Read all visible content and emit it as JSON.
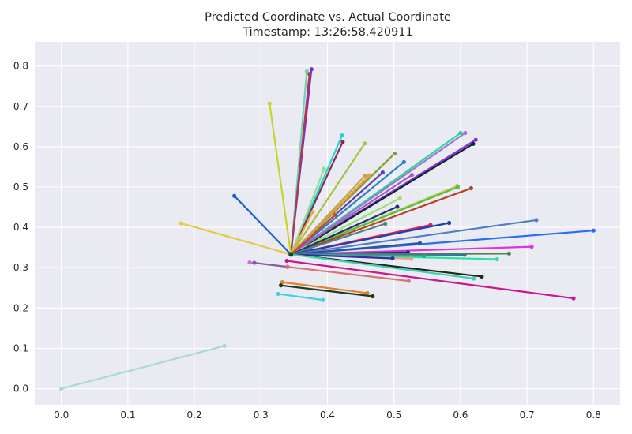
{
  "chart_data": {
    "type": "line",
    "title": "Predicted Coordinate vs. Actual Coordinate",
    "subtitle": "Timestamp: 13:26:58.420911",
    "xlabel": "",
    "ylabel": "",
    "xlim": [
      -0.04,
      0.84
    ],
    "ylim": [
      -0.04,
      0.86
    ],
    "xticks": [
      "0.0",
      "0.1",
      "0.2",
      "0.3",
      "0.4",
      "0.5",
      "0.6",
      "0.7",
      "0.8"
    ],
    "yticks": [
      "0.0",
      "0.1",
      "0.2",
      "0.3",
      "0.4",
      "0.5",
      "0.6",
      "0.7",
      "0.8"
    ],
    "grid": true,
    "background": "#eaeaf2",
    "hub": [
      0.345,
      0.333
    ],
    "segments": [
      {
        "from": [
          0.0,
          0.0
        ],
        "to": [
          0.245,
          0.106
        ],
        "color": "#a9d8d8"
      },
      {
        "from": [
          0.345,
          0.333
        ],
        "to": [
          0.369,
          0.787
        ],
        "color": "#6fd3b8"
      },
      {
        "from": [
          0.345,
          0.333
        ],
        "to": [
          0.376,
          0.792
        ],
        "color": "#7a2ad0"
      },
      {
        "from": [
          0.345,
          0.333
        ],
        "to": [
          0.373,
          0.78
        ],
        "color": "#b03a48"
      },
      {
        "from": [
          0.345,
          0.333
        ],
        "to": [
          0.313,
          0.707
        ],
        "color": "#c8d42a"
      },
      {
        "from": [
          0.345,
          0.333
        ],
        "to": [
          0.422,
          0.628
        ],
        "color": "#1fd6d6"
      },
      {
        "from": [
          0.345,
          0.333
        ],
        "to": [
          0.423,
          0.612
        ],
        "color": "#8a2a50"
      },
      {
        "from": [
          0.345,
          0.333
        ],
        "to": [
          0.456,
          0.608
        ],
        "color": "#a8c040"
      },
      {
        "from": [
          0.345,
          0.333
        ],
        "to": [
          0.6,
          0.634
        ],
        "color": "#2ad49a"
      },
      {
        "from": [
          0.345,
          0.333
        ],
        "to": [
          0.607,
          0.634
        ],
        "color": "#9a7ad0"
      },
      {
        "from": [
          0.345,
          0.333
        ],
        "to": [
          0.623,
          0.617
        ],
        "color": "#8a2ad8"
      },
      {
        "from": [
          0.345,
          0.333
        ],
        "to": [
          0.619,
          0.607
        ],
        "color": "#0a2a2a"
      },
      {
        "from": [
          0.345,
          0.333
        ],
        "to": [
          0.501,
          0.583
        ],
        "color": "#7aa030"
      },
      {
        "from": [
          0.345,
          0.333
        ],
        "to": [
          0.515,
          0.562
        ],
        "color": "#2a80d0"
      },
      {
        "from": [
          0.345,
          0.333
        ],
        "to": [
          0.395,
          0.545
        ],
        "color": "#90e090"
      },
      {
        "from": [
          0.345,
          0.333
        ],
        "to": [
          0.483,
          0.536
        ],
        "color": "#5a40b0"
      },
      {
        "from": [
          0.345,
          0.333
        ],
        "to": [
          0.463,
          0.529
        ],
        "color": "#e8a040"
      },
      {
        "from": [
          0.345,
          0.333
        ],
        "to": [
          0.456,
          0.527
        ],
        "color": "#c8a050"
      },
      {
        "from": [
          0.345,
          0.333
        ],
        "to": [
          0.527,
          0.53
        ],
        "color": "#a060c0"
      },
      {
        "from": [
          0.345,
          0.333
        ],
        "to": [
          0.595,
          0.503
        ],
        "color": "#c8d050"
      },
      {
        "from": [
          0.345,
          0.333
        ],
        "to": [
          0.596,
          0.5
        ],
        "color": "#50c040"
      },
      {
        "from": [
          0.345,
          0.333
        ],
        "to": [
          0.616,
          0.497
        ],
        "color": "#b84020"
      },
      {
        "from": [
          0.345,
          0.333
        ],
        "to": [
          0.509,
          0.472
        ],
        "color": "#98e070"
      },
      {
        "from": [
          0.345,
          0.333
        ],
        "to": [
          0.505,
          0.451
        ],
        "color": "#203080"
      },
      {
        "from": [
          0.345,
          0.333
        ],
        "to": [
          0.378,
          0.438
        ],
        "color": "#e0b050"
      },
      {
        "from": [
          0.345,
          0.333
        ],
        "to": [
          0.412,
          0.431
        ],
        "color": "#d04030"
      },
      {
        "from": [
          0.345,
          0.333
        ],
        "to": [
          0.487,
          0.409
        ],
        "color": "#508080"
      },
      {
        "from": [
          0.345,
          0.333
        ],
        "to": [
          0.555,
          0.406
        ],
        "color": "#e02050"
      },
      {
        "from": [
          0.345,
          0.333
        ],
        "to": [
          0.583,
          0.411
        ],
        "color": "#2040b0"
      },
      {
        "from": [
          0.345,
          0.333
        ],
        "to": [
          0.714,
          0.418
        ],
        "color": "#5080c0"
      },
      {
        "from": [
          0.345,
          0.333
        ],
        "to": [
          0.8,
          0.392
        ],
        "color": "#2a6ef0"
      },
      {
        "from": [
          0.345,
          0.333
        ],
        "to": [
          0.539,
          0.361
        ],
        "color": "#3050a0"
      },
      {
        "from": [
          0.345,
          0.333
        ],
        "to": [
          0.707,
          0.352
        ],
        "color": "#e030e0"
      },
      {
        "from": [
          0.345,
          0.333
        ],
        "to": [
          0.521,
          0.338
        ],
        "color": "#2020c0"
      },
      {
        "from": [
          0.345,
          0.333
        ],
        "to": [
          0.606,
          0.332
        ],
        "color": "#2070c0"
      },
      {
        "from": [
          0.345,
          0.333
        ],
        "to": [
          0.673,
          0.335
        ],
        "color": "#508050"
      },
      {
        "from": [
          0.345,
          0.333
        ],
        "to": [
          0.655,
          0.321
        ],
        "color": "#30e0a0"
      },
      {
        "from": [
          0.345,
          0.333
        ],
        "to": [
          0.545,
          0.329
        ],
        "color": "#30a0a0"
      },
      {
        "from": [
          0.345,
          0.333
        ],
        "to": [
          0.526,
          0.322
        ],
        "color": "#f0a080"
      },
      {
        "from": [
          0.345,
          0.333
        ],
        "to": [
          0.498,
          0.323
        ],
        "color": "#3030a0"
      },
      {
        "from": [
          0.345,
          0.333
        ],
        "to": [
          0.632,
          0.278
        ],
        "color": "#1a2a1a"
      },
      {
        "from": [
          0.345,
          0.333
        ],
        "to": [
          0.62,
          0.273
        ],
        "color": "#40d0b0"
      },
      {
        "from": [
          0.18,
          0.41
        ],
        "to": [
          0.345,
          0.333
        ],
        "color": "#e8c840"
      },
      {
        "from": [
          0.26,
          0.478
        ],
        "to": [
          0.345,
          0.333
        ],
        "color": "#1a60d0"
      },
      {
        "from": [
          0.283,
          0.313
        ],
        "to": [
          0.34,
          0.302
        ],
        "color": "#d070e0"
      },
      {
        "from": [
          0.29,
          0.312
        ],
        "to": [
          0.34,
          0.302
        ],
        "color": "#8060a0"
      },
      {
        "from": [
          0.34,
          0.302
        ],
        "to": [
          0.522,
          0.267
        ],
        "color": "#e07070"
      },
      {
        "from": [
          0.339,
          0.317
        ],
        "to": [
          0.77,
          0.224
        ],
        "color": "#c81890"
      },
      {
        "from": [
          0.332,
          0.264
        ],
        "to": [
          0.46,
          0.237
        ],
        "color": "#e08030"
      },
      {
        "from": [
          0.33,
          0.256
        ],
        "to": [
          0.468,
          0.229
        ],
        "color": "#203a20"
      },
      {
        "from": [
          0.326,
          0.235
        ],
        "to": [
          0.393,
          0.22
        ],
        "color": "#40d0e0"
      }
    ]
  }
}
